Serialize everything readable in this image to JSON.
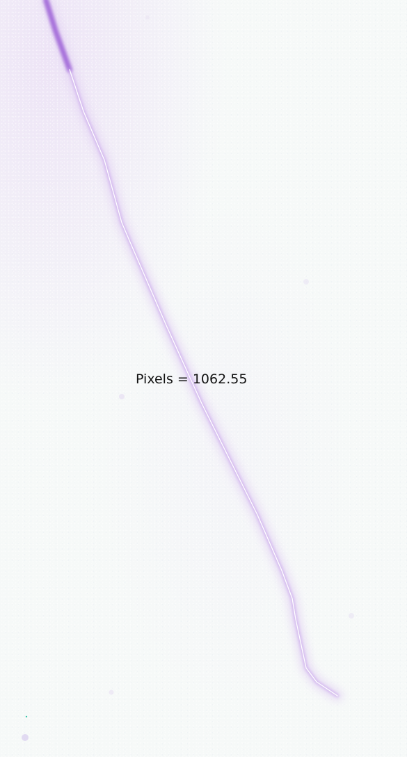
{
  "measurement": {
    "text": "Pixels = 1062.55"
  },
  "colors": {
    "background": "#f6f9f8",
    "strand_core": "#9b5fd6",
    "strand_glow": "#d8c2f0",
    "trace_line": "#ffffff",
    "label_text": "#111111"
  }
}
